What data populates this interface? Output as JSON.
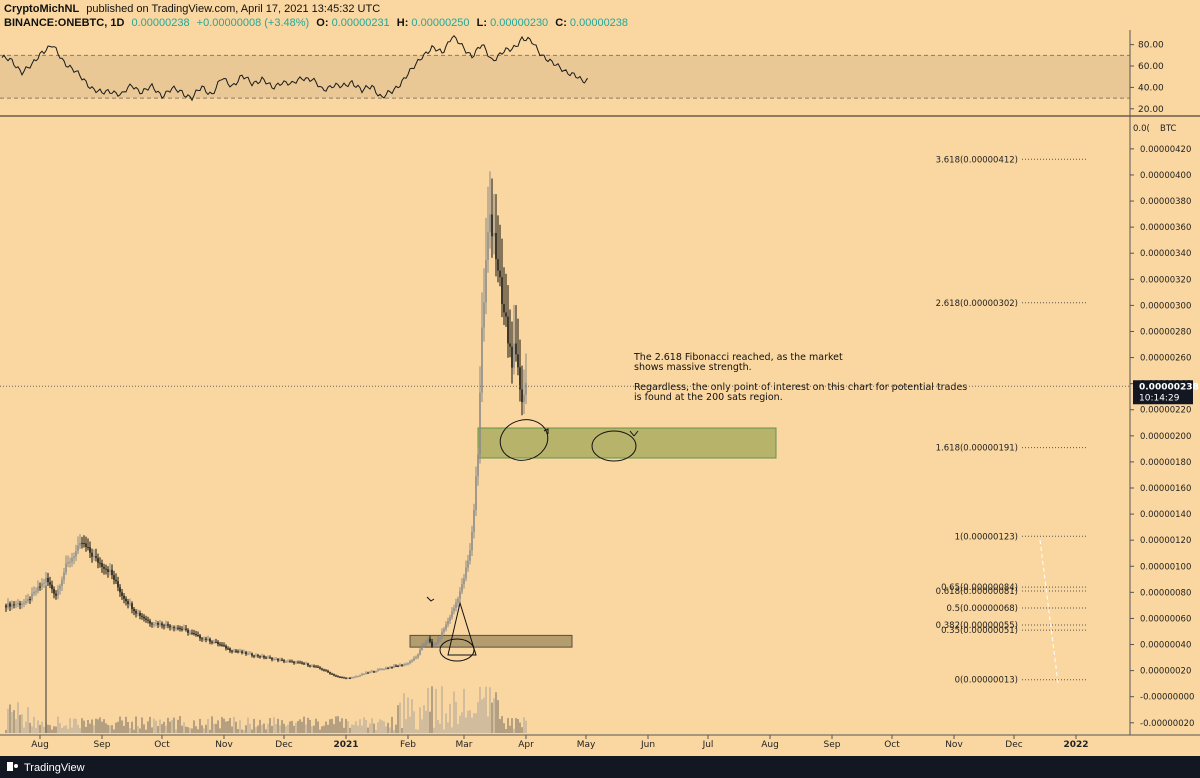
{
  "header": {
    "publisher": "CryptoMichNL",
    "published_text": "published on TradingView.com, April 17, 2021 13:45:32 UTC",
    "symbol": "BINANCE:ONEBTC, 1D",
    "last": "0.00000238",
    "change": "+0.00000008 (+3.48%)",
    "o_label": "O:",
    "o_value": "0.00000231",
    "h_label": "H:",
    "h_value": "0.00000250",
    "l_label": "L:",
    "l_value": "0.00000230",
    "c_label": "C:",
    "c_value": "0.00000238"
  },
  "footer": {
    "brand": "TradingView"
  },
  "colors": {
    "background": "#fad7a0",
    "up": "#8a8a8a",
    "down": "#111111",
    "fib_line": "#555555",
    "zone_green": "#a3a85a",
    "zone_brown": "#9c8a5e",
    "price_badge": "#131722",
    "header_green": "#26a69a"
  },
  "chart_data": [
    {
      "type": "line",
      "panel": "oscillator",
      "ylim": [
        17,
        89
      ],
      "yticks": [
        "80.00",
        "60.00",
        "40.00",
        "20.00"
      ],
      "band": [
        30,
        70
      ],
      "series": [
        {
          "values": [
            [
              0,
              68
            ],
            [
              5,
              64
            ],
            [
              10,
              55
            ],
            [
              15,
              60
            ],
            [
              20,
              74
            ],
            [
              25,
              79
            ],
            [
              30,
              66
            ],
            [
              35,
              58
            ],
            [
              40,
              48
            ],
            [
              45,
              40
            ],
            [
              50,
              34
            ],
            [
              55,
              37
            ],
            [
              60,
              33
            ],
            [
              65,
              42
            ],
            [
              70,
              36
            ],
            [
              75,
              40
            ],
            [
              80,
              33
            ],
            [
              85,
              38
            ],
            [
              90,
              36
            ],
            [
              95,
              30
            ],
            [
              100,
              40
            ],
            [
              105,
              34
            ],
            [
              110,
              48
            ],
            [
              115,
              42
            ],
            [
              120,
              50
            ],
            [
              125,
              44
            ],
            [
              130,
              48
            ],
            [
              135,
              39
            ],
            [
              140,
              46
            ],
            [
              145,
              42
            ],
            [
              150,
              50
            ],
            [
              155,
              47
            ],
            [
              160,
              38
            ],
            [
              165,
              42
            ],
            [
              170,
              40
            ],
            [
              175,
              46
            ],
            [
              180,
              36
            ],
            [
              185,
              42
            ],
            [
              190,
              30
            ],
            [
              195,
              36
            ],
            [
              200,
              46
            ],
            [
              205,
              56
            ],
            [
              210,
              70
            ],
            [
              215,
              76
            ],
            [
              220,
              73
            ],
            [
              225,
              88
            ],
            [
              230,
              78
            ],
            [
              235,
              70
            ],
            [
              240,
              79
            ],
            [
              245,
              66
            ],
            [
              250,
              72
            ],
            [
              255,
              76
            ],
            [
              260,
              86
            ],
            [
              265,
              82
            ],
            [
              270,
              71
            ],
            [
              275,
              62
            ],
            [
              280,
              58
            ],
            [
              285,
              52
            ],
            [
              290,
              46
            ],
            [
              293,
              48
            ]
          ]
        }
      ]
    },
    {
      "type": "candlestick",
      "panel": "price",
      "x_unit": "days since 2020-07-15",
      "ylim": [
        -2.4e-07,
        4.36e-06
      ],
      "yticks": [
        "0.00000420",
        "0.00000400",
        "0.00000380",
        "0.00000360",
        "0.00000340",
        "0.00000320",
        "0.00000300",
        "0.00000280",
        "0.00000260",
        "0.00000240",
        "0.00000220",
        "0.00000200",
        "0.00000180",
        "0.00000160",
        "0.00000140",
        "0.00000120",
        "0.00000100",
        "0.00000080",
        "0.00000060",
        "0.00000040",
        "0.00000020",
        "-0.00000000",
        "-0.00000020"
      ],
      "axis_unit": "BTC",
      "axis_top_partial": "0.0(",
      "current_price": {
        "label": "0.00000238",
        "value": 2.38e-06,
        "countdown": "10:14:29"
      },
      "xticks": [
        {
          "label": "Aug",
          "day": 17
        },
        {
          "label": "Sep",
          "day": 48
        },
        {
          "label": "Oct",
          "day": 78
        },
        {
          "label": "Nov",
          "day": 109
        },
        {
          "label": "Dec",
          "day": 139
        },
        {
          "label": "2021",
          "day": 170
        },
        {
          "label": "Feb",
          "day": 201
        },
        {
          "label": "Mar",
          "day": 229
        },
        {
          "label": "Apr",
          "day": 260
        },
        {
          "label": "May",
          "day": 290
        },
        {
          "label": "Jun",
          "day": 321
        },
        {
          "label": "Jul",
          "day": 351
        },
        {
          "label": "Aug",
          "day": 382
        },
        {
          "label": "Sep",
          "day": 413
        },
        {
          "label": "Oct",
          "day": 443
        },
        {
          "label": "Nov",
          "day": 474
        },
        {
          "label": "Dec",
          "day": 504
        },
        {
          "label": "2022",
          "day": 535
        }
      ],
      "anchors": [
        [
          0,
          7e-07
        ],
        [
          10,
          7.2e-07
        ],
        [
          20,
          9e-07
        ],
        [
          25,
          7.8e-07
        ],
        [
          30,
          1e-06
        ],
        [
          38,
          1.18e-06
        ],
        [
          45,
          1.05e-06
        ],
        [
          52,
          9.6e-07
        ],
        [
          58,
          7.8e-07
        ],
        [
          65,
          6.5e-07
        ],
        [
          72,
          5.7e-07
        ],
        [
          80,
          5.5e-07
        ],
        [
          88,
          5.2e-07
        ],
        [
          96,
          4.6e-07
        ],
        [
          104,
          4.2e-07
        ],
        [
          112,
          3.6e-07
        ],
        [
          120,
          3.3e-07
        ],
        [
          130,
          3e-07
        ],
        [
          140,
          2.7e-07
        ],
        [
          150,
          2.5e-07
        ],
        [
          158,
          2.1e-07
        ],
        [
          166,
          1.5e-07
        ],
        [
          172,
          1.4e-07
        ],
        [
          180,
          1.8e-07
        ],
        [
          190,
          2.2e-07
        ],
        [
          200,
          2.5e-07
        ],
        [
          205,
          3e-07
        ],
        [
          208,
          3.8e-07
        ],
        [
          211,
          4.5e-07
        ],
        [
          213,
          3.8e-07
        ],
        [
          216,
          4.3e-07
        ],
        [
          220,
          5.5e-07
        ],
        [
          224,
          6.8e-07
        ],
        [
          228,
          8.5e-07
        ],
        [
          232,
          1.1e-06
        ],
        [
          234,
          1.45e-06
        ],
        [
          236,
          1.9e-06
        ],
        [
          238,
          2.8e-06
        ],
        [
          240,
          3.3e-06
        ],
        [
          242,
          3.7e-06
        ],
        [
          244,
          3.6e-06
        ],
        [
          246,
          3.2e-06
        ],
        [
          248,
          3e-06
        ],
        [
          250,
          2.85e-06
        ],
        [
          252,
          2.65e-06
        ],
        [
          254,
          2.6e-06
        ],
        [
          256,
          2.45e-06
        ],
        [
          258,
          2.32e-06
        ],
        [
          260,
          2.38e-06
        ]
      ],
      "sparse_after": 233,
      "fib_levels": [
        {
          "label": "3.618(0.00000412)",
          "value": 4.12e-06
        },
        {
          "label": "2.618(0.00000302)",
          "value": 3.02e-06
        },
        {
          "label": "1.618(0.00000191)",
          "value": 1.91e-06
        },
        {
          "label": "1(0.00000123)",
          "value": 1.23e-06
        },
        {
          "label": "0.65(0.00000084)",
          "value": 8.4e-07
        },
        {
          "label": "0.618(0.00000081)",
          "value": 8.1e-07
        },
        {
          "label": "0.5(0.00000068)",
          "value": 6.8e-07
        },
        {
          "label": "0.382(0.00000055)",
          "value": 5.5e-07
        },
        {
          "label": "0.35(0.00000051)",
          "value": 5.1e-07
        },
        {
          "label": "0(0.00000013)",
          "value": 1.3e-07
        }
      ],
      "zones": [
        {
          "x": [
            236,
            385
          ],
          "y": [
            1.83e-06,
            2.06e-06
          ],
          "kind": "green"
        },
        {
          "x": [
            202,
            283
          ],
          "y": [
            3.8e-07,
            4.7e-07
          ],
          "kind": "brown"
        }
      ],
      "annotations": [
        "The 2.618 Fibonacci reached, as the market",
        "shows massive strength.",
        "",
        "Regardless, the only point of interest on this chart for potential trades",
        "is found at the 200 sats region."
      ]
    }
  ]
}
